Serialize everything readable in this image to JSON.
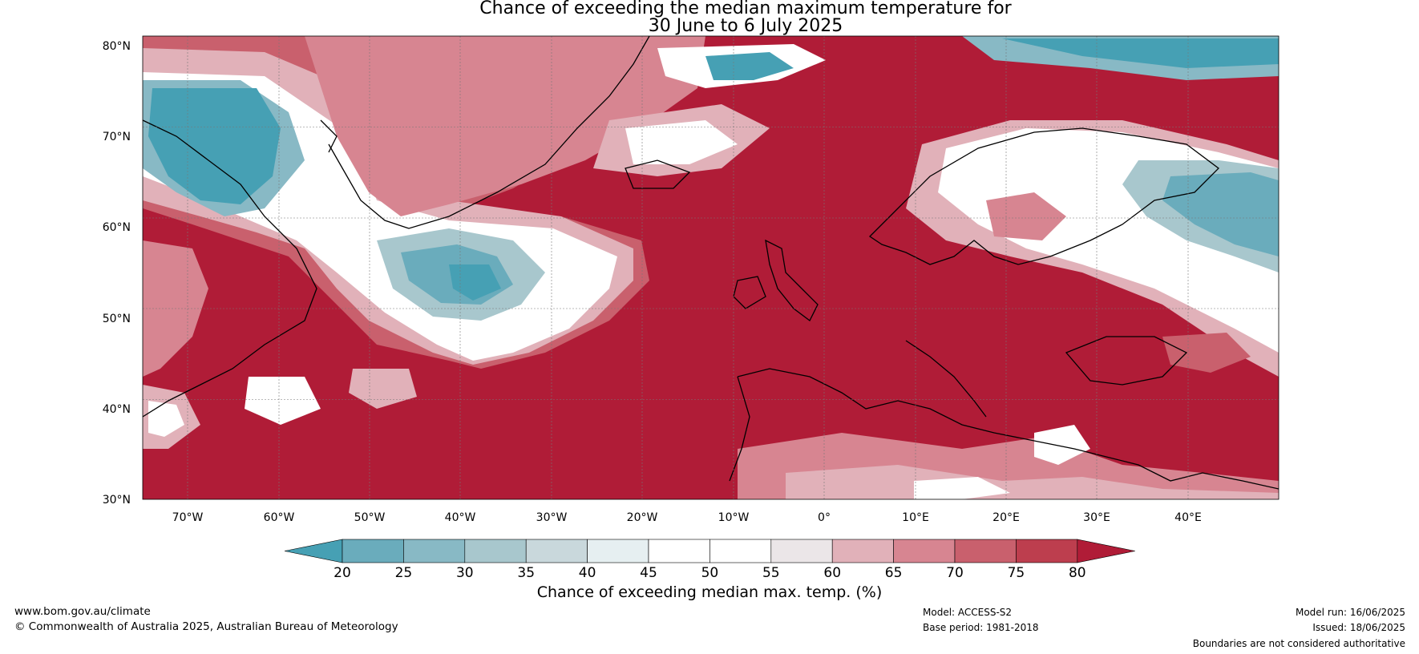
{
  "title": {
    "line1": "Chance of exceeding the median maximum temperature for",
    "line2": "30 June to 6 July 2025"
  },
  "map": {
    "lat_labels": [
      "80°N",
      "70°N",
      "60°N",
      "50°N",
      "40°N",
      "30°N"
    ],
    "lon_labels": [
      "70°W",
      "60°W",
      "50°W",
      "40°W",
      "30°W",
      "20°W",
      "10°W",
      "0°",
      "10°E",
      "20°E",
      "30°E",
      "40°E"
    ]
  },
  "colorbar": {
    "ticks": [
      "20",
      "25",
      "30",
      "35",
      "40",
      "45",
      "50",
      "55",
      "60",
      "65",
      "70",
      "75",
      "80"
    ],
    "colors": [
      "#46a0b4",
      "#6aacbc",
      "#88b9c5",
      "#a8c7cd",
      "#c9d8dc",
      "#e6eff1",
      "#ffffff",
      "#ffffff",
      "#ebe6e8",
      "#e1b1b9",
      "#d78591",
      "#c9606d",
      "#bd3e4e",
      "#b01c37"
    ],
    "label": "Chance of exceeding median max. temp. (%)"
  },
  "footer": {
    "website": "www.bom.gov.au/climate",
    "copyright": "© Commonwealth of Australia 2025, Australian Bureau of Meteorology",
    "model": "Model: ACCESS-S2",
    "base_period": "Base period: 1981-2018",
    "model_run": "Model run: 16/06/2025",
    "issued": "Issued: 18/06/2025",
    "disclaimer": "Boundaries are not considered authoritative"
  }
}
